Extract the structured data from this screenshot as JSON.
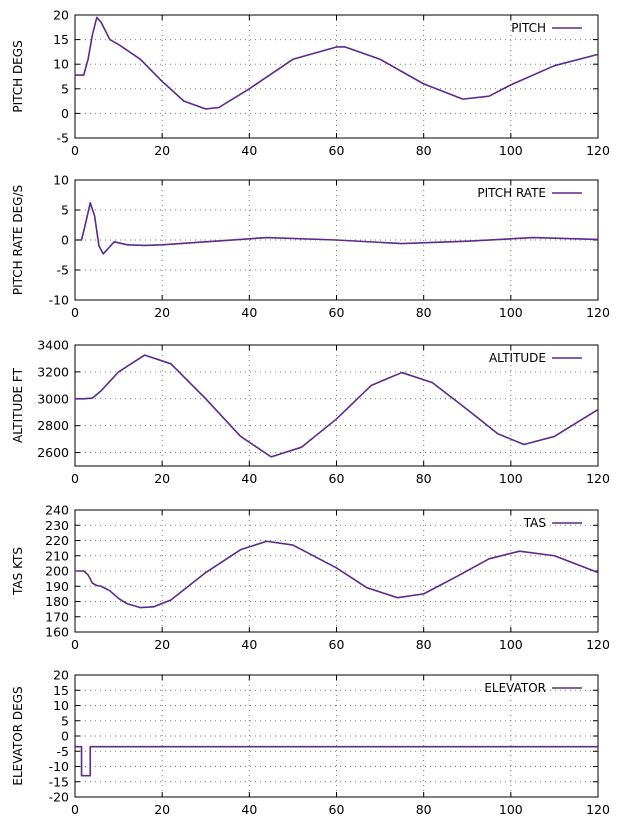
{
  "chart_data": [
    {
      "type": "line",
      "ylabel": "PITCH DEGS",
      "xlim": [
        0,
        120
      ],
      "ylim": [
        -5,
        20
      ],
      "xticks": [
        0,
        20,
        40,
        60,
        80,
        100,
        120
      ],
      "yticks": [
        -5,
        0,
        5,
        10,
        15,
        20
      ],
      "grid": true,
      "legend": "top-right",
      "series": [
        {
          "name": "PITCH",
          "x": [
            0,
            2,
            3,
            4,
            5,
            6,
            8,
            10,
            15,
            20,
            25,
            30,
            33,
            40,
            50,
            60,
            62,
            70,
            80,
            89,
            95,
            100,
            110,
            120
          ],
          "y": [
            7.8,
            7.8,
            11,
            16,
            19.5,
            18.5,
            15,
            14,
            11,
            6.5,
            2.5,
            0.9,
            1.2,
            5,
            11,
            13.5,
            13.5,
            11,
            6,
            2.9,
            3.5,
            5.8,
            9.7,
            12
          ]
        }
      ]
    },
    {
      "type": "line",
      "ylabel": "PITCH RATE DEG/S",
      "xlim": [
        0,
        120
      ],
      "ylim": [
        -10,
        10
      ],
      "xticks": [
        0,
        20,
        40,
        60,
        80,
        100,
        120
      ],
      "yticks": [
        -10,
        -5,
        0,
        5,
        10
      ],
      "grid": true,
      "legend": "top-right",
      "series": [
        {
          "name": "PITCH RATE",
          "x": [
            0,
            1.5,
            2.5,
            3.5,
            4.5,
            5.5,
            6.5,
            7.5,
            9,
            12,
            16,
            20,
            30,
            44,
            60,
            75,
            90,
            105,
            120
          ],
          "y": [
            0,
            0,
            3,
            6.2,
            4,
            -1,
            -2.3,
            -1.5,
            -0.3,
            -0.8,
            -0.9,
            -0.8,
            -0.3,
            0.4,
            0,
            -0.6,
            -0.2,
            0.4,
            0.1
          ]
        }
      ]
    },
    {
      "type": "line",
      "ylabel": "ALTITUDE FT",
      "xlim": [
        0,
        120
      ],
      "ylim": [
        2500,
        3400
      ],
      "xticks": [
        0,
        20,
        40,
        60,
        80,
        100,
        120
      ],
      "yticks": [
        2600,
        2800,
        3000,
        3200,
        3400
      ],
      "grid": true,
      "legend": "top-right",
      "series": [
        {
          "name": "ALTITUDE",
          "x": [
            0,
            2,
            4,
            6,
            10,
            16,
            22,
            30,
            38,
            45,
            52,
            60,
            68,
            75,
            82,
            90,
            97,
            103,
            110,
            115,
            120
          ],
          "y": [
            3000,
            3000,
            3005,
            3060,
            3200,
            3325,
            3260,
            3000,
            2720,
            2568,
            2640,
            2850,
            3100,
            3195,
            3120,
            2920,
            2740,
            2660,
            2720,
            2820,
            2920
          ]
        }
      ]
    },
    {
      "type": "line",
      "ylabel": "TAS KTS",
      "xlim": [
        0,
        120
      ],
      "ylim": [
        160,
        240
      ],
      "xticks": [
        0,
        20,
        40,
        60,
        80,
        100,
        120
      ],
      "yticks": [
        160,
        170,
        180,
        190,
        200,
        210,
        220,
        230,
        240
      ],
      "grid": true,
      "legend": "top-right",
      "series": [
        {
          "name": "TAS",
          "x": [
            0,
            2,
            3,
            4,
            5,
            6,
            8,
            10,
            12,
            15,
            18,
            22,
            30,
            38,
            44,
            50,
            60,
            67,
            74,
            80,
            88,
            95,
            102,
            110,
            120
          ],
          "y": [
            200,
            200,
            197.5,
            192,
            190.5,
            190,
            187,
            182,
            178.5,
            176,
            176.5,
            181,
            199,
            214,
            219.5,
            217,
            202,
            189,
            182.5,
            185,
            197,
            208,
            213,
            210,
            199
          ]
        }
      ]
    },
    {
      "type": "line",
      "ylabel": "ELEVATOR DEGS",
      "xlim": [
        0,
        120
      ],
      "ylim": [
        -20,
        20
      ],
      "xticks": [
        0,
        20,
        40,
        60,
        80,
        100,
        120
      ],
      "yticks": [
        -20,
        -15,
        -10,
        -5,
        0,
        5,
        10,
        15,
        20
      ],
      "grid": true,
      "legend": "top-right",
      "series": [
        {
          "name": "ELEVATOR",
          "x": [
            0,
            1.5,
            1.5,
            3.5,
            3.5,
            120
          ],
          "y": [
            -3.5,
            -3.5,
            -13,
            -13,
            -3.5,
            -3.5
          ]
        }
      ]
    }
  ],
  "colors": {
    "line": "#5b2a8c",
    "grid": "#7a7a7a",
    "frame": "#000000"
  }
}
